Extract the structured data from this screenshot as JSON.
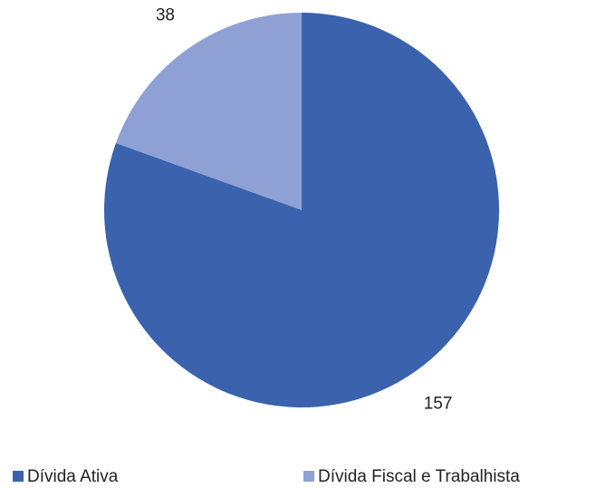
{
  "chart_data": {
    "type": "pie",
    "categories": [
      "Dívida Ativa",
      "Dívida Fiscal e Trabalhista"
    ],
    "values": [
      157,
      38
    ],
    "colors": [
      "#3a62ad",
      "#8fa1d4"
    ],
    "legend": "bottom"
  }
}
